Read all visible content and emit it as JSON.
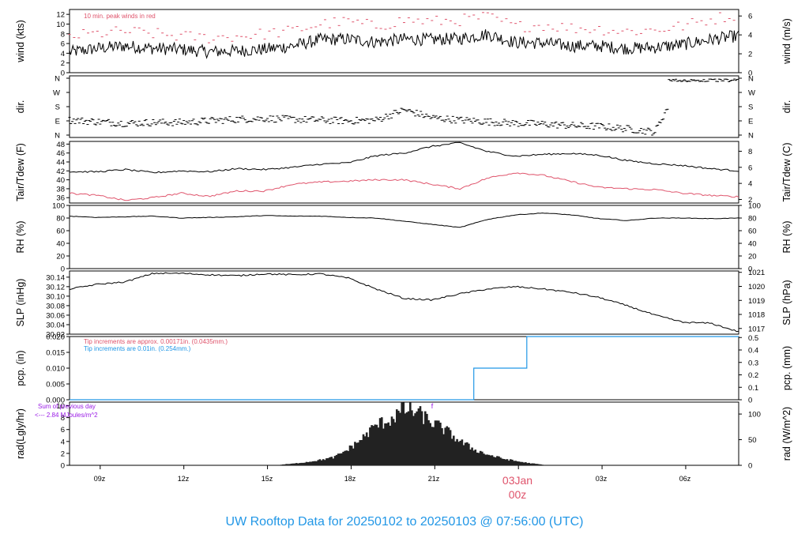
{
  "title": "UW Rooftop Data for 20250102  to  20250103 @ 07:56:00  (UTC)",
  "colors": {
    "black": "#000000",
    "red": "#df536b",
    "blue": "#2297e6",
    "purple": "#9a1be6",
    "frame": "#000000"
  },
  "x_axis": {
    "tick_labels": [
      "09z",
      "12z",
      "15z",
      "18z",
      "21z",
      "03z",
      "06z"
    ],
    "day_label": "03Jan",
    "day_hour_label": "00z"
  },
  "chart_data": [
    {
      "type": "line",
      "panel": "wind",
      "ylabel_left": "wind (kts)",
      "ylabel_right": "wind (m/s)",
      "left_ticks": [
        "0",
        "2",
        "4",
        "6",
        "8",
        "10",
        "12"
      ],
      "right_ticks": [
        "0",
        "2",
        "4",
        "6"
      ],
      "ylim": [
        0,
        13
      ],
      "annotation": "10 min. peak winds in red",
      "x_hours": [
        0,
        1,
        2,
        3,
        4,
        5,
        6,
        7,
        8,
        9,
        10,
        11,
        12,
        13,
        14,
        15,
        16,
        17,
        18,
        19,
        20,
        21,
        22,
        23,
        24
      ],
      "series": [
        {
          "values": [
            4.2,
            5.0,
            5.5,
            5.0,
            4.8,
            4.3,
            4.5,
            4.8,
            5.5,
            6.8,
            6.9,
            6.3,
            6.9,
            6.8,
            7.0,
            7.9,
            6.2,
            6.1,
            5.5,
            5.5,
            5.0,
            5.2,
            5.8,
            6.8,
            7.6
          ]
        },
        {
          "values": [
            7.5,
            8.0,
            8.5,
            8.0,
            7.5,
            7.2,
            7.5,
            8.0,
            8.6,
            10.0,
            10.5,
            9.5,
            10.8,
            10.5,
            10.8,
            11.5,
            9.5,
            9.8,
            9.2,
            9.0,
            8.5,
            8.8,
            9.6,
            11.0,
            12.0
          ]
        }
      ]
    },
    {
      "type": "scatter",
      "panel": "direction",
      "ylabel_left": "dir.",
      "ylabel_right": "dir.",
      "tick_labels": [
        "N",
        "E",
        "S",
        "W",
        "N"
      ],
      "ylim": [
        0,
        360
      ],
      "x_hours": [
        0,
        1,
        2,
        3,
        4,
        5,
        6,
        7,
        8,
        9,
        10,
        11,
        12,
        13,
        14,
        15,
        16,
        17,
        18,
        19,
        20,
        21,
        22,
        23,
        24
      ],
      "values": [
        95,
        85,
        75,
        80,
        80,
        90,
        100,
        105,
        100,
        95,
        90,
        95,
        160,
        110,
        95,
        85,
        75,
        70,
        60,
        55,
        40,
        20,
        360,
        355,
        360
      ]
    },
    {
      "type": "line",
      "panel": "temperature",
      "ylabel_left": "Tair/Tdew (F)",
      "ylabel_right": "Tair/Tdew (C)",
      "left_ticks": [
        "36",
        "38",
        "40",
        "42",
        "44",
        "46",
        "48"
      ],
      "right_ticks": [
        "2",
        "4",
        "6",
        "8"
      ],
      "ylim": [
        34.8,
        48.6
      ],
      "x_hours": [
        0,
        1,
        2,
        3,
        4,
        5,
        6,
        7,
        8,
        9,
        10,
        11,
        12,
        13,
        14,
        15,
        16,
        17,
        18,
        19,
        20,
        21,
        22,
        23,
        24
      ],
      "series": [
        {
          "values": [
            41.8,
            41.8,
            42.3,
            41.6,
            42.0,
            41.8,
            42.5,
            42.3,
            42.8,
            43.5,
            43.8,
            45.4,
            46.0,
            47.5,
            48.3,
            46.3,
            45.3,
            45.7,
            45.9,
            45.5,
            44.3,
            43.6,
            43.2,
            42.5,
            42.0
          ]
        },
        {
          "values": [
            37.0,
            36.5,
            35.4,
            36.0,
            37.0,
            36.3,
            37.5,
            37.5,
            39.0,
            39.5,
            39.7,
            40.0,
            40.0,
            39.0,
            38.0,
            40.4,
            41.6,
            41.0,
            39.6,
            38.3,
            38.0,
            37.8,
            37.0,
            36.5,
            36.2
          ]
        }
      ]
    },
    {
      "type": "line",
      "panel": "rh",
      "ylabel_left": "RH (%)",
      "ylabel_right": "RH (%)",
      "tick_labels": [
        "0",
        "20",
        "40",
        "60",
        "80",
        "100"
      ],
      "ylim": [
        0,
        100
      ],
      "x_hours": [
        0,
        1,
        2,
        3,
        4,
        5,
        6,
        7,
        8,
        9,
        10,
        11,
        12,
        13,
        14,
        15,
        16,
        17,
        18,
        19,
        20,
        21,
        22,
        23,
        24
      ],
      "values": [
        83,
        81,
        82,
        83,
        80,
        81,
        82,
        84,
        83,
        83,
        81,
        80,
        75,
        70,
        65,
        78,
        85,
        88,
        85,
        79,
        76,
        80,
        80,
        79,
        80
      ]
    },
    {
      "type": "line",
      "panel": "pressure",
      "ylabel_left": "SLP (inHg)",
      "ylabel_right": "SLP (hPa)",
      "left_ticks": [
        "30.02",
        "30.04",
        "30.06",
        "30.08",
        "30.10",
        "30.12",
        "30.14"
      ],
      "right_ticks": [
        "1017",
        "1018",
        "1019",
        "1020",
        "1021"
      ],
      "ylim": [
        30.02,
        30.153
      ],
      "x_hours": [
        0,
        1,
        2,
        3,
        4,
        5,
        6,
        7,
        8,
        9,
        10,
        11,
        12,
        13,
        14,
        15,
        16,
        17,
        18,
        19,
        20,
        21,
        22,
        23,
        24
      ],
      "values": [
        30.115,
        30.125,
        30.13,
        30.148,
        30.148,
        30.145,
        30.143,
        30.147,
        30.145,
        30.147,
        30.138,
        30.115,
        30.095,
        30.092,
        30.105,
        30.115,
        30.12,
        30.115,
        30.108,
        30.097,
        30.08,
        30.06,
        30.045,
        30.043,
        30.025
      ]
    },
    {
      "type": "line",
      "panel": "precipitation",
      "ylabel_left": "pcp. (in)",
      "ylabel_right": "pcp. (mm)",
      "left_ticks": [
        "0.000",
        "0.005",
        "0.010",
        "0.015",
        "0.020"
      ],
      "right_ticks": [
        "0",
        "0.1",
        "0.2",
        "0.3",
        "0.4",
        "0.5"
      ],
      "ylim": [
        0,
        0.02
      ],
      "annotations": [
        "Tip increments are approx. 0.00171in. (0.0435mm.)",
        "Tip increments are 0.01in. (0.254mm.)"
      ],
      "x_hours": [
        0,
        14.5,
        14.5,
        16.4,
        16.4,
        24
      ],
      "values": [
        0,
        0,
        0.01,
        0.01,
        0.02,
        0.02
      ]
    },
    {
      "type": "bar",
      "panel": "radiation",
      "ylabel_left": "rad(Lgly/hr)",
      "ylabel_right": "rad (W/m^2)",
      "left_ticks": [
        "0",
        "2",
        "4",
        "6",
        "8",
        "10"
      ],
      "right_ticks": [
        "0",
        "50",
        "100"
      ],
      "ylim": [
        0,
        10.6
      ],
      "annotation_lines": [
        "Sum of previous day",
        "<--- 2.84 MJoules/m^2"
      ],
      "marker": "f",
      "x_hours": [
        7.5,
        8,
        8.5,
        9,
        9.5,
        10,
        10.5,
        11,
        11.5,
        12,
        12.5,
        13,
        13.5,
        14,
        14.5,
        15,
        15.5,
        16,
        16.5,
        17
      ],
      "values": [
        0.1,
        0.3,
        0.6,
        1.0,
        1.5,
        3.0,
        5.0,
        7.5,
        8.5,
        10.5,
        9.8,
        8.0,
        6.5,
        4.5,
        3.0,
        2.0,
        1.3,
        0.8,
        0.4,
        0.1
      ]
    }
  ]
}
